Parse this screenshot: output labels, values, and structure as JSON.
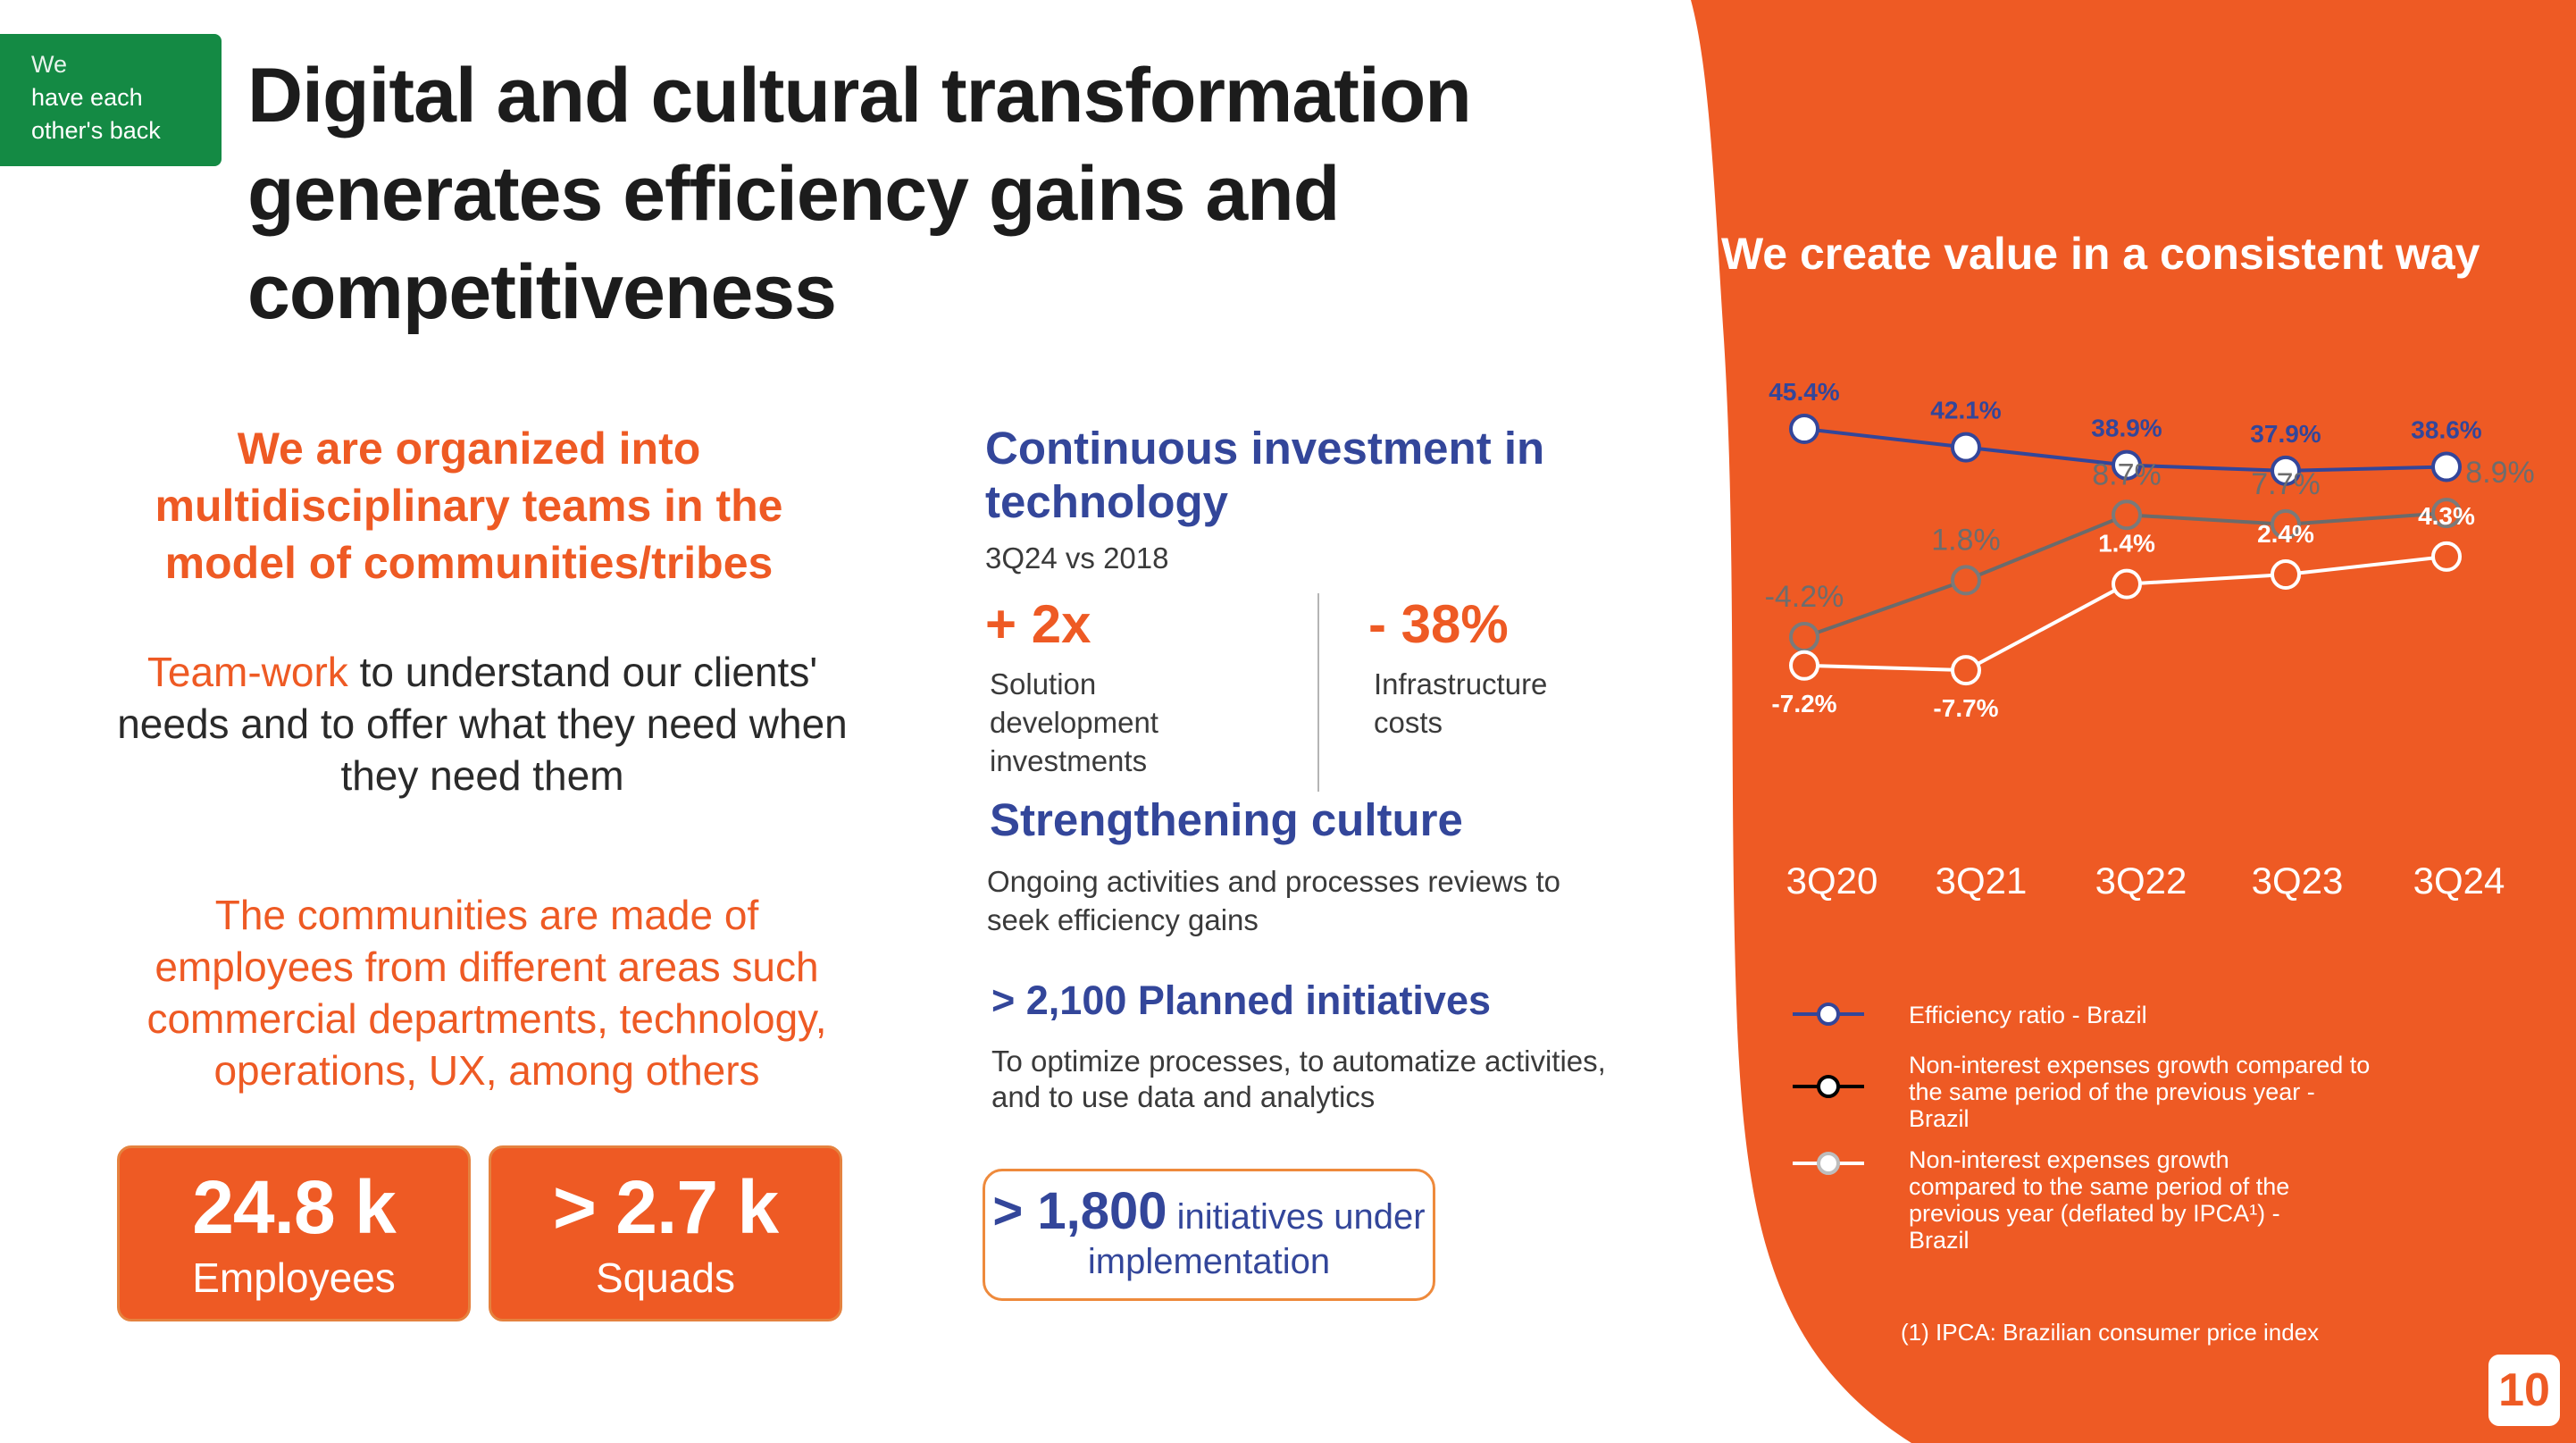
{
  "badge": {
    "line1": "We",
    "line2": "have each",
    "line3": "other's back"
  },
  "title": "Digital and cultural transformation generates efficiency gains and competitiveness",
  "left": {
    "heading": "We are organized into multidisciplinary teams in the model of communities/tribes",
    "teamwork_highlight": "Team-work",
    "teamwork_text": " to understand our clients' needs and to offer what they need when they need them",
    "communities": "The communities are made of employees from different areas such commercial departments, technology, operations, UX, among others",
    "stats": [
      {
        "value": "24.8 k",
        "label": "Employees"
      },
      {
        "value": "> 2.7 k",
        "label": "Squads"
      }
    ]
  },
  "middle": {
    "investment_heading": "Continuous investment in technology",
    "comparison": "3Q24 vs 2018",
    "metric1": {
      "value": "+ 2x",
      "label": "Solution development investments"
    },
    "metric2": {
      "value": "- 38%",
      "label": "Infrastructure costs"
    },
    "culture_heading": "Strengthening culture",
    "culture_text": "Ongoing activities and processes reviews to seek efficiency gains",
    "planned_heading": "> 2,100 Planned initiatives",
    "planned_text": "To optimize processes, to automatize activities, and to use data and analytics",
    "implementation_value": "> 1,800",
    "implementation_text": " initiatives under implementation"
  },
  "colors": {
    "orange": "#ee5a24",
    "blue": "#33469a",
    "green": "#148a44",
    "grey_line": "#6b6b6b"
  },
  "chart_data": {
    "type": "line",
    "title": "We create value in a consistent way",
    "categories": [
      "3Q20",
      "3Q21",
      "3Q22",
      "3Q23",
      "3Q24"
    ],
    "series": [
      {
        "name": "Efficiency ratio - Brazil",
        "values": [
          45.4,
          42.1,
          38.9,
          37.9,
          38.6
        ],
        "labels": [
          "45.4%",
          "42.1%",
          "38.9%",
          "37.9%",
          "38.6%"
        ],
        "color": "#33469a"
      },
      {
        "name": "Non-interest expenses growth compared to the same period of the previous year - Brazil",
        "values": [
          -4.2,
          1.8,
          8.7,
          7.7,
          8.9
        ],
        "labels": [
          "-4.2%",
          "1.8%",
          "8.7%",
          "7.7%",
          "8.9%"
        ],
        "color": "#6b6b6b"
      },
      {
        "name": "Non-interest expenses growth compared to the same period of the previous year (deflated by IPCA¹) - Brazil",
        "values": [
          -7.2,
          -7.7,
          1.4,
          2.4,
          4.3
        ],
        "labels": [
          "-7.2%",
          "-7.7%",
          "1.4%",
          "2.4%",
          "4.3%"
        ],
        "color": "#ffffff"
      }
    ],
    "grid": false,
    "legend_position": "bottom"
  },
  "footnote": "(1) IPCA: Brazilian consumer price index",
  "page_number": "10"
}
